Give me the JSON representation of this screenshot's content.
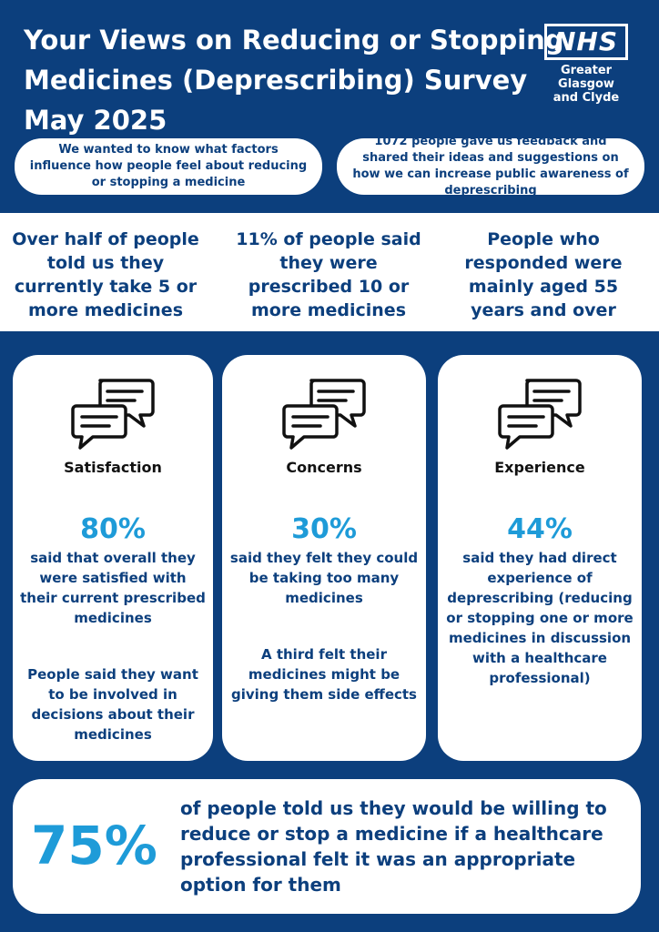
{
  "header": {
    "title_lines": [
      "Your Views on Reducing or Stopping",
      "Medicines (Deprescribing) Survey",
      "May 2025"
    ],
    "logo_word": "NHS",
    "logo_sub_lines": [
      "Greater Glasgow",
      "and Clyde"
    ]
  },
  "intro": {
    "left": "We wanted to know what factors influence how people feel about reducing or stopping a medicine",
    "right": "1072 people gave us feedback and shared their ideas and suggestions on how we can increase public awareness of deprescribing"
  },
  "highlights": [
    "Over half of people told us they currently take 5 or more medicines",
    "11% of people said they were prescribed 10 or more medicines",
    "People who responded were mainly aged 55 years and over"
  ],
  "cards": [
    {
      "icon": "speech-bubbles-icon",
      "heading": "Satisfaction",
      "percent": "80%",
      "text": "said that overall they were satisfied with their current prescribed medicines",
      "extra": "People said they want to be involved in decisions about their medicines"
    },
    {
      "icon": "speech-bubbles-icon",
      "heading": "Concerns",
      "percent": "30%",
      "text": "said they felt they could be taking too many medicines",
      "extra": "A third felt their medicines might be giving them side effects"
    },
    {
      "icon": "speech-bubbles-icon",
      "heading": "Experience",
      "percent": "44%",
      "text": "said they had direct experience of deprescribing (reducing or stopping one or more medicines in discussion with a healthcare professional)"
    }
  ],
  "bottom": {
    "percent": "75%",
    "text": "of people told us they would be willing to reduce or stop a medicine if a healthcare professional felt it was an appropriate option for them"
  },
  "colors": {
    "navy": "#0c3f7d",
    "accent_blue": "#1e9bd8",
    "white": "#ffffff"
  }
}
